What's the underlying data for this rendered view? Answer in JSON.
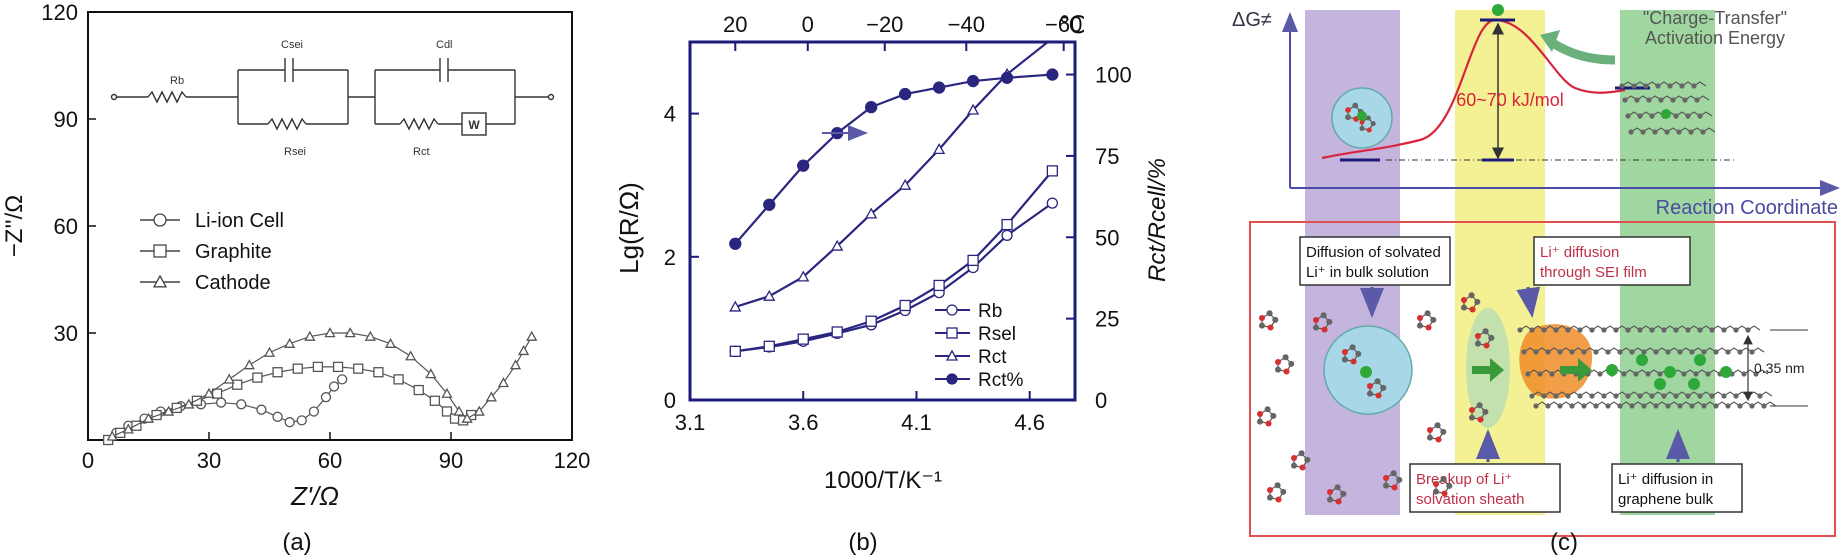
{
  "chart_data": [
    {
      "panel": "(a)",
      "type": "scatter",
      "xlabel": "Z'/Ω",
      "ylabel": "−Z''/Ω",
      "xlim": [
        0,
        120
      ],
      "ylim": [
        0,
        120
      ],
      "xticks": [
        "0",
        "30",
        "60",
        "90",
        "120"
      ],
      "yticks": [
        "30",
        "60",
        "90",
        "120"
      ],
      "legend": [
        "Li-ion Cell",
        "Graphite",
        "Cathode"
      ],
      "circuit_labels": {
        "rb": "Rb",
        "csei": "Csei",
        "rsei": "Rsei",
        "cdl": "Cdl",
        "rct": "Rct",
        "w": "W"
      },
      "series": [
        {
          "name": "Li-ion Cell",
          "marker": "circle",
          "points": [
            [
              5,
              0
            ],
            [
              7,
              2
            ],
            [
              10,
              4
            ],
            [
              14,
              6
            ],
            [
              18,
              8
            ],
            [
              23,
              9.5
            ],
            [
              28,
              10
            ],
            [
              33,
              10.5
            ],
            [
              38,
              10
            ],
            [
              43,
              8.5
            ],
            [
              47,
              6.5
            ],
            [
              50,
              5
            ],
            [
              53,
              5.5
            ],
            [
              56,
              8
            ],
            [
              59,
              12
            ],
            [
              61,
              15
            ],
            [
              63,
              17
            ]
          ]
        },
        {
          "name": "Graphite",
          "marker": "square",
          "points": [
            [
              5,
              0
            ],
            [
              8,
              2
            ],
            [
              12,
              4
            ],
            [
              17,
              7
            ],
            [
              22,
              9
            ],
            [
              27,
              11
            ],
            [
              32,
              13
            ],
            [
              37,
              15.5
            ],
            [
              42,
              17.5
            ],
            [
              47,
              19
            ],
            [
              52,
              20
            ],
            [
              57,
              20.5
            ],
            [
              62,
              20.5
            ],
            [
              67,
              20
            ],
            [
              72,
              19
            ],
            [
              77,
              17
            ],
            [
              82,
              14
            ],
            [
              86,
              11
            ],
            [
              89,
              8
            ],
            [
              91,
              6
            ],
            [
              93,
              5.5
            ],
            [
              95,
              7
            ]
          ]
        },
        {
          "name": "Cathode",
          "marker": "triangle",
          "points": [
            [
              6,
              1
            ],
            [
              10,
              3
            ],
            [
              15,
              6
            ],
            [
              20,
              8
            ],
            [
              25,
              10
            ],
            [
              30,
              13
            ],
            [
              35,
              17
            ],
            [
              40,
              21
            ],
            [
              45,
              24.5
            ],
            [
              50,
              27
            ],
            [
              55,
              29
            ],
            [
              60,
              30
            ],
            [
              65,
              30
            ],
            [
              70,
              29
            ],
            [
              75,
              27
            ],
            [
              80,
              23.5
            ],
            [
              85,
              18.5
            ],
            [
              89,
              13
            ],
            [
              92,
              8
            ],
            [
              94,
              6
            ],
            [
              97,
              8
            ],
            [
              100,
              12
            ],
            [
              103,
              16
            ],
            [
              106,
              21
            ],
            [
              108,
              25
            ],
            [
              110,
              29
            ]
          ]
        }
      ]
    },
    {
      "panel": "(b)",
      "type": "line",
      "xlabel": "1000/T/K⁻¹",
      "ylabel": "Lg(R/Ω)",
      "y2label": "Rct/Rcell/%",
      "top_axis_unit": "℃",
      "xlim": [
        3.1,
        4.8
      ],
      "ylim": [
        0,
        5.0
      ],
      "y2lim": [
        0,
        110
      ],
      "xticks": [
        "3.1",
        "3.6",
        "4.1",
        "4.6"
      ],
      "yticks": [
        "0",
        "2",
        "4"
      ],
      "y2ticks": [
        "0",
        "25",
        "50",
        "75",
        "100"
      ],
      "top_ticks": [
        "20",
        "0",
        "−20",
        "−40",
        "−60"
      ],
      "legend": [
        "Rb",
        "Rsel",
        "Rct",
        "Rct%"
      ],
      "series": [
        {
          "name": "Rb",
          "marker": "circle",
          "x": [
            3.3,
            3.45,
            3.6,
            3.75,
            3.9,
            4.05,
            4.2,
            4.35,
            4.5,
            4.7
          ],
          "y": [
            0.68,
            0.74,
            0.82,
            0.93,
            1.05,
            1.25,
            1.5,
            1.85,
            2.3,
            2.75
          ]
        },
        {
          "name": "Rsel",
          "marker": "square",
          "x": [
            3.3,
            3.45,
            3.6,
            3.75,
            3.9,
            4.05,
            4.2,
            4.35,
            4.5,
            4.7
          ],
          "y": [
            0.68,
            0.75,
            0.85,
            0.95,
            1.1,
            1.32,
            1.6,
            1.95,
            2.45,
            3.2
          ]
        },
        {
          "name": "Rct",
          "marker": "triangle",
          "x": [
            3.3,
            3.45,
            3.6,
            3.75,
            3.9,
            4.05,
            4.2,
            4.35,
            4.5,
            4.7
          ],
          "y": [
            1.3,
            1.45,
            1.72,
            2.15,
            2.6,
            3.0,
            3.5,
            4.05,
            4.55,
            5.05
          ]
        },
        {
          "name": "Rct%",
          "marker": "filled-circle",
          "axis": "right",
          "x": [
            3.3,
            3.45,
            3.6,
            3.75,
            3.9,
            4.05,
            4.2,
            4.35,
            4.5,
            4.7
          ],
          "y": [
            48,
            60,
            72,
            82,
            90,
            94,
            96,
            98,
            99,
            100
          ]
        }
      ],
      "annotation_arrow": "→"
    }
  ],
  "panel_c": {
    "dg_label": "ΔG≠",
    "x_label": "Reaction Coordinate",
    "activation_title": "\"Charge-Transfer\"",
    "activation_subtitle": "Activation Energy",
    "energy_label": "60~70 kJ/mol",
    "box_diffusion_line1": "Diffusion of solvated",
    "box_diffusion_line2": "Li⁺ in bulk solution",
    "box_sei_line1": "Li⁺ diffusion",
    "box_sei_line2": "through SEI film",
    "box_breakup_line1": "Breakup of Li⁺",
    "box_breakup_line2": "solvation sheath",
    "box_graphene_line1": "Li⁺ diffusion in",
    "box_graphene_line2": "graphene bulk",
    "spacing_label": "0.35 nm"
  },
  "captions": {
    "a": "(a)",
    "b": "(b)",
    "c": "(c)"
  }
}
